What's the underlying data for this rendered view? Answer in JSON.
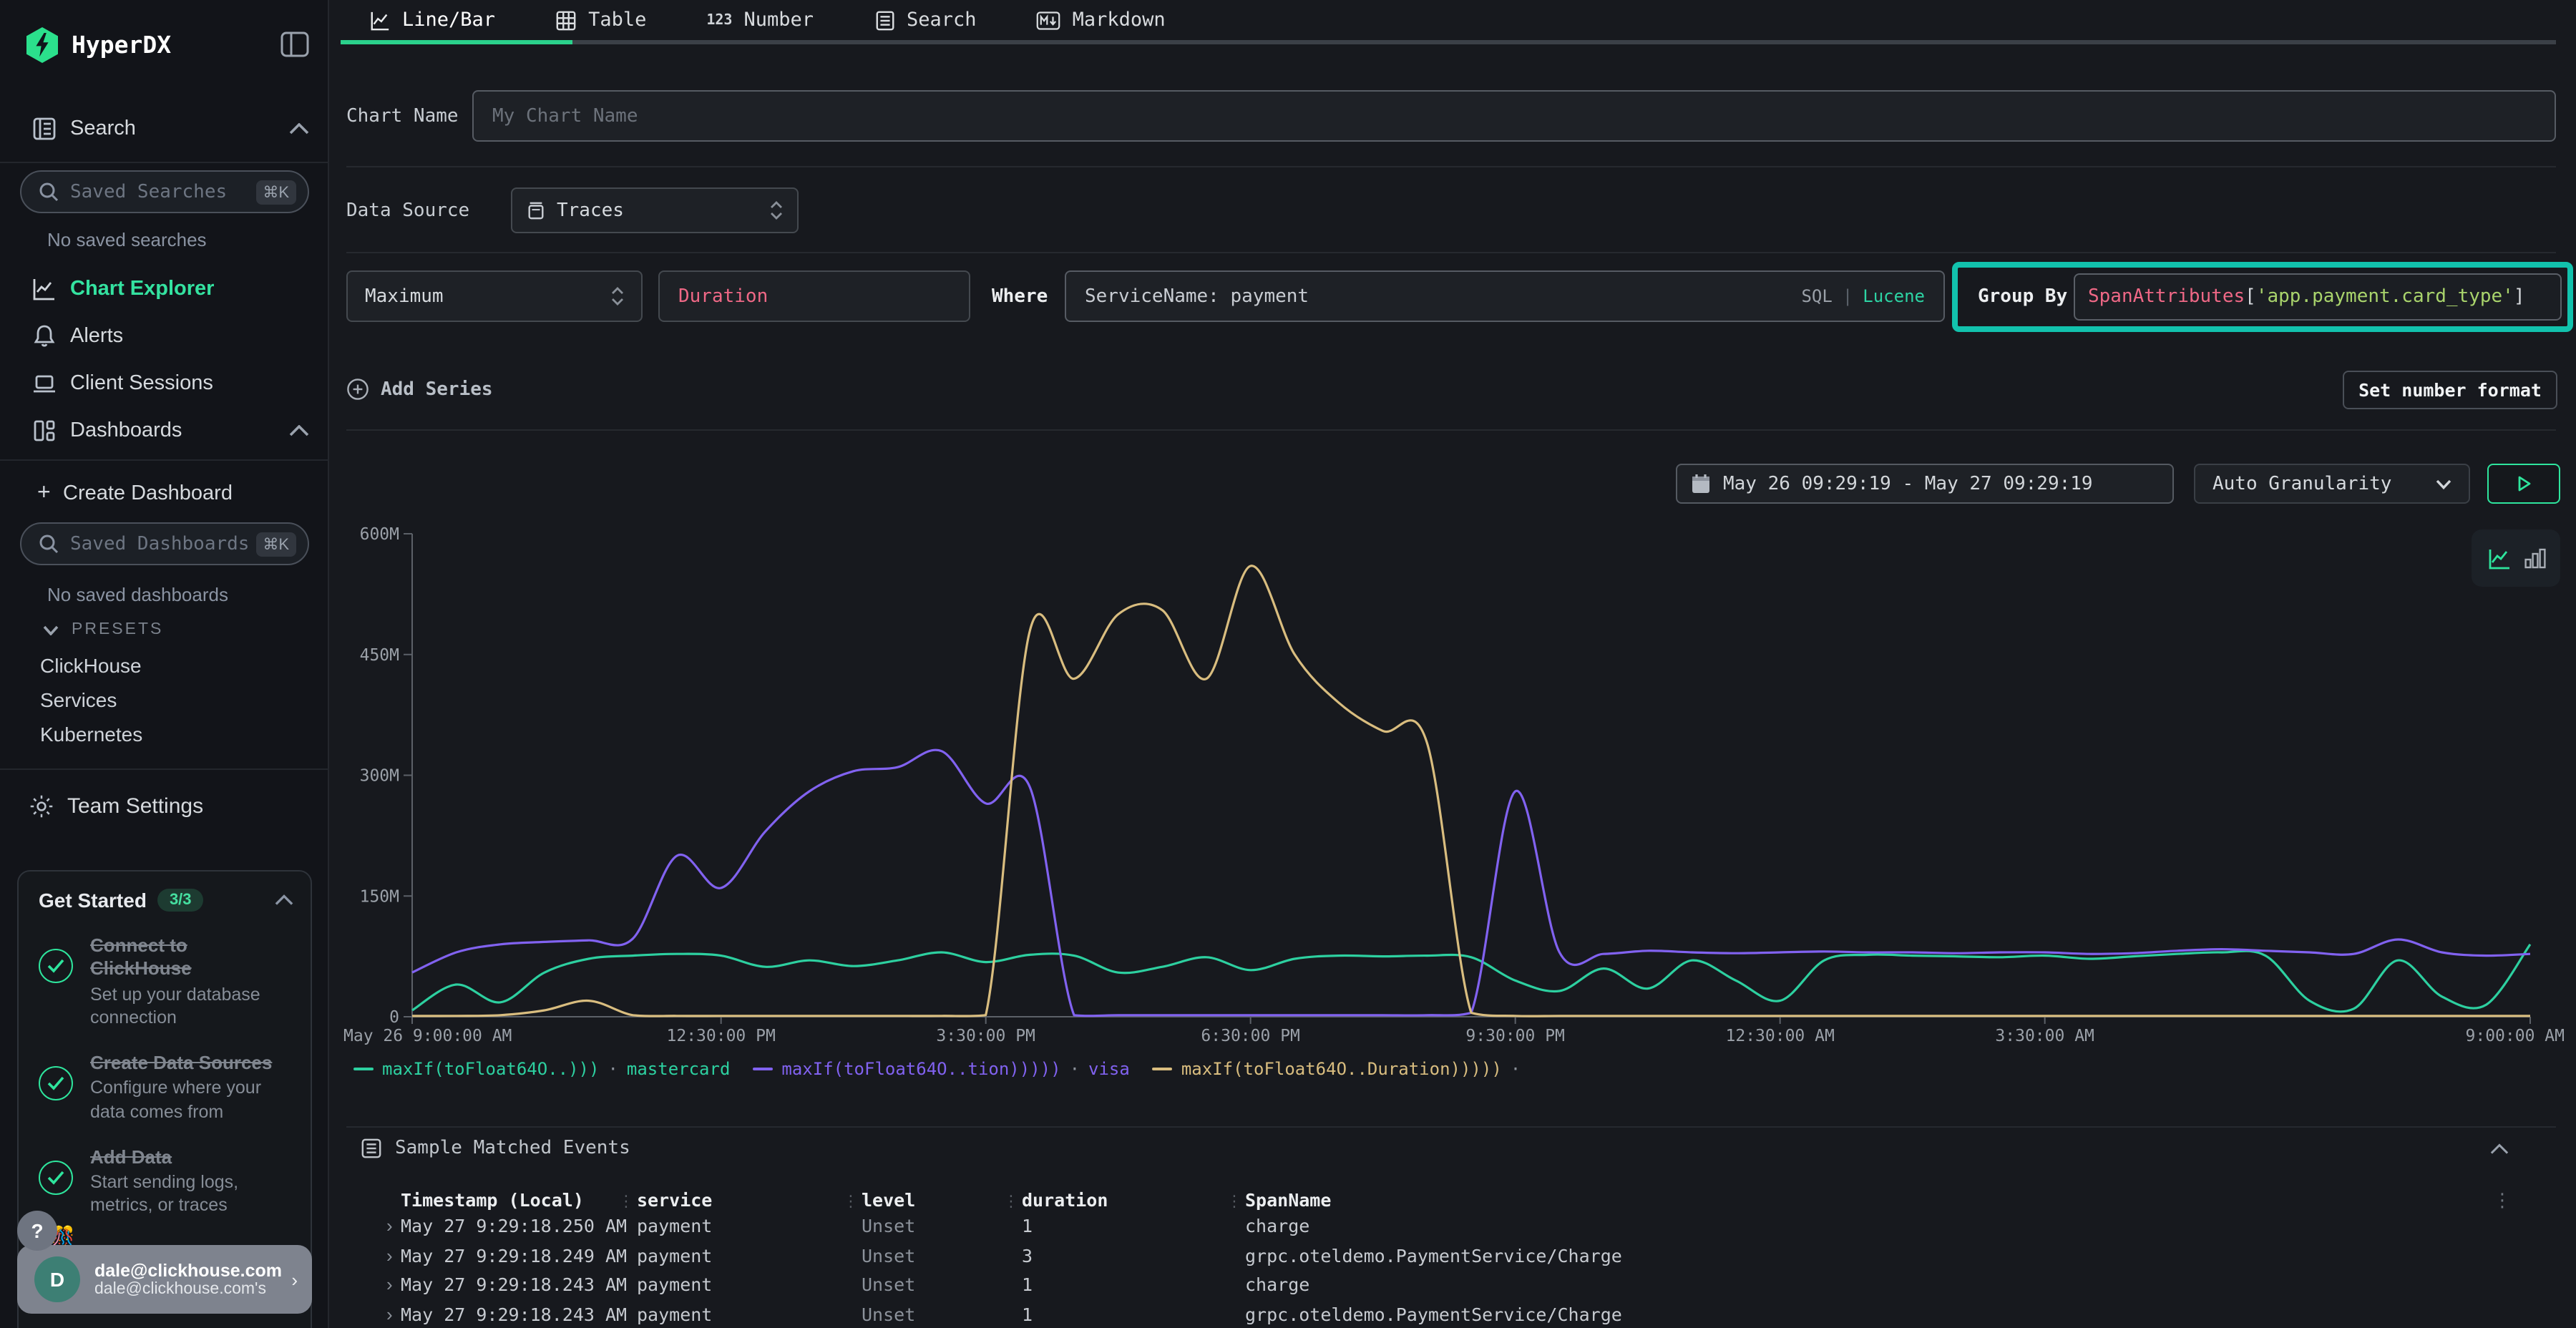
{
  "app": {
    "name": "HyperDX"
  },
  "sidebar": {
    "search_section_label": "Search",
    "saved_searches": {
      "placeholder": "Saved Searches",
      "shortcut": "⌘K",
      "empty": "No saved searches"
    },
    "nav": [
      {
        "label": "Chart Explorer",
        "active": true
      },
      {
        "label": "Alerts",
        "active": false
      },
      {
        "label": "Client Sessions",
        "active": false
      },
      {
        "label": "Dashboards",
        "active": false
      }
    ],
    "plus_icon": "+",
    "create_dashboard": "Create Dashboard",
    "saved_dashboards": {
      "placeholder": "Saved Dashboards",
      "shortcut": "⌘K",
      "empty": "No saved dashboards"
    },
    "presets": {
      "label": "PRESETS",
      "items": [
        "ClickHouse",
        "Services",
        "Kubernetes"
      ]
    },
    "team_settings": "Team Settings",
    "get_started": {
      "title": "Get Started",
      "badge": "3/3",
      "items": [
        {
          "title": "Connect to ClickHouse",
          "subtitle": "Set up your database connection"
        },
        {
          "title": "Create Data Sources",
          "subtitle": "Configure where your data comes from"
        },
        {
          "title": "Add Data",
          "subtitle": "Start sending logs, metrics, or traces"
        }
      ]
    },
    "help_label": "?",
    "hidden_item_emoji": "🎊",
    "user": {
      "initial": "D",
      "name": "dale@clickhouse.com",
      "sub": "dale@clickhouse.com's",
      "chevron": "›"
    }
  },
  "tabs": [
    {
      "label": "Line/Bar",
      "active": true
    },
    {
      "label": "Table",
      "active": false
    },
    {
      "label": "Number",
      "active": false
    },
    {
      "label": "Search",
      "active": false
    },
    {
      "label": "Markdown",
      "active": false
    }
  ],
  "form": {
    "chart_name_label": "Chart Name",
    "chart_name_placeholder": "My Chart Name",
    "data_source_label": "Data Source",
    "data_source_value": "Traces",
    "aggregation": "Maximum",
    "field": "Duration",
    "where_label": "Where",
    "where_value": "ServiceName: payment",
    "sql": "SQL",
    "lang_divider": "|",
    "lucene": "Lucene",
    "group_by_label": "Group By",
    "group_by": {
      "fn": "SpanAttributes",
      "bracket_open": "[",
      "arg": "'app.payment.card_type'",
      "bracket_close": "]"
    },
    "add_series": "Add Series",
    "set_number_format": "Set number format"
  },
  "controls": {
    "date_range": "May 26 09:29:19 - May 27 09:29:19",
    "granularity": "Auto Granularity"
  },
  "chart_data": {
    "type": "line",
    "x_start": "May 26 9:00:00 AM",
    "x_end": "May 27 9:00:00 AM",
    "x_hours_span": 24,
    "step_hours": 0.5,
    "x_ticks": [
      {
        "h": 0,
        "label": "May 26 9:00:00 AM"
      },
      {
        "h": 3.5,
        "label": "12:30:00 PM"
      },
      {
        "h": 6.5,
        "label": "3:30:00 PM"
      },
      {
        "h": 9.5,
        "label": "6:30:00 PM"
      },
      {
        "h": 12.5,
        "label": "9:30:00 PM"
      },
      {
        "h": 15.5,
        "label": "12:30:00 AM"
      },
      {
        "h": 18.5,
        "label": "3:30:00 AM"
      },
      {
        "h": 24,
        "label": "9:00:00 AM"
      }
    ],
    "y_ticks": [
      {
        "v": 0,
        "label": "0"
      },
      {
        "v": 150,
        "label": "150M"
      },
      {
        "v": 300,
        "label": "300M"
      },
      {
        "v": 450,
        "label": "450M"
      },
      {
        "v": 600,
        "label": "600M"
      }
    ],
    "ylim": [
      0,
      600
    ],
    "value_unit": "M",
    "grid": false,
    "legend_position": "bottom",
    "series": [
      {
        "name": "maxIf(toFloat64O..))) · mastercard",
        "color": "#2dd0a0",
        "values": [
          8,
          40,
          18,
          55,
          72,
          76,
          78,
          76,
          62,
          70,
          63,
          70,
          80,
          68,
          77,
          76,
          55,
          62,
          74,
          58,
          72,
          76,
          75,
          76,
          74,
          45,
          32,
          60,
          35,
          70,
          45,
          20,
          70,
          77,
          76,
          75,
          74,
          76,
          72,
          75,
          78,
          80,
          76,
          20,
          10,
          70,
          25,
          15,
          90
        ]
      },
      {
        "name": "maxIf(toFloat64O..tion))))) · visa",
        "color": "#8162f0",
        "values": [
          55,
          80,
          90,
          93,
          95,
          97,
          200,
          160,
          230,
          280,
          305,
          310,
          330,
          265,
          285,
          2,
          2,
          2,
          2,
          2,
          2,
          2,
          2,
          2,
          5,
          280,
          80,
          78,
          82,
          80,
          79,
          80,
          81,
          80,
          80,
          79,
          80,
          80,
          78,
          79,
          82,
          84,
          82,
          80,
          78,
          96,
          80,
          76,
          78
        ]
      },
      {
        "name": "maxIf(toFloat64O..Duration))))) ·",
        "color": "#d9bd7f",
        "values": [
          1,
          1,
          2,
          8,
          20,
          2,
          1,
          1,
          1,
          1,
          1,
          1,
          1,
          2,
          480,
          420,
          500,
          505,
          420,
          560,
          450,
          390,
          355,
          340,
          5,
          1,
          1,
          1,
          1,
          1,
          1,
          1,
          1,
          1,
          1,
          1,
          1,
          1,
          1,
          1,
          1,
          1,
          1,
          1,
          1,
          1,
          1,
          1,
          1
        ]
      }
    ]
  },
  "legend": {
    "separator": "·",
    "items": [
      {
        "label": "maxIf(toFloat64O..)))",
        "group": "mastercard",
        "color": "#2dd0a0"
      },
      {
        "label": "maxIf(toFloat64O..tion)))))",
        "group": "visa",
        "color": "#8162f0"
      },
      {
        "label": "maxIf(toFloat64O..Duration)))))",
        "group": "",
        "color": "#d9bd7f"
      }
    ]
  },
  "events": {
    "title": "Sample Matched Events",
    "columns": [
      "Timestamp (Local)",
      "service",
      "level",
      "duration",
      "SpanName"
    ],
    "rows": [
      {
        "timestamp": "May 27 9:29:18.250 AM",
        "service": "payment",
        "level": "Unset",
        "duration": "1",
        "span_name": "charge"
      },
      {
        "timestamp": "May 27 9:29:18.249 AM",
        "service": "payment",
        "level": "Unset",
        "duration": "3",
        "span_name": "grpc.oteldemo.PaymentService/Charge"
      },
      {
        "timestamp": "May 27 9:29:18.243 AM",
        "service": "payment",
        "level": "Unset",
        "duration": "1",
        "span_name": "charge"
      },
      {
        "timestamp": "May 27 9:29:18.243 AM",
        "service": "payment",
        "level": "Unset",
        "duration": "1",
        "span_name": "grpc.oteldemo.PaymentService/Charge"
      }
    ]
  },
  "colors": {
    "accent_green": "#2ee59d",
    "annotation_teal": "#12c2ad",
    "series_green": "#2dd0a0",
    "series_purple": "#8162f0",
    "series_gold": "#d9bd7f",
    "pink": "#ef6886",
    "code_green": "#a9d46c",
    "lucene_green": "#2dd4a4"
  }
}
